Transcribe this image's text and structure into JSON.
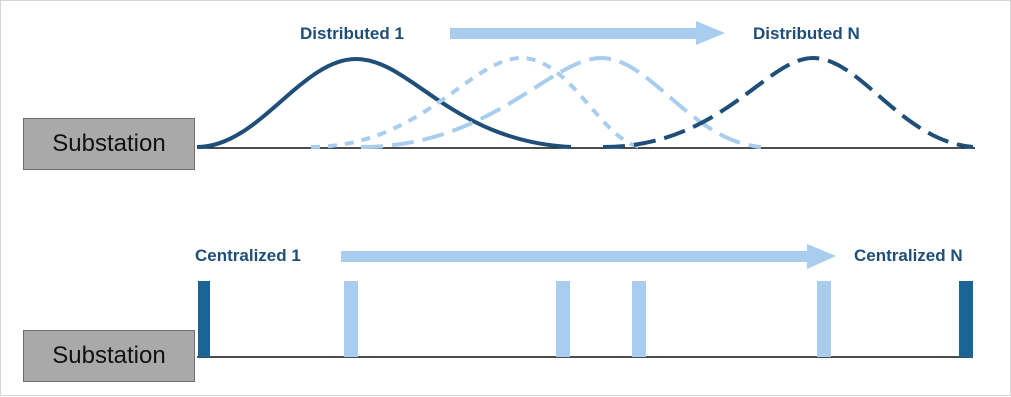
{
  "distributed": {
    "start_label": "Distributed 1",
    "end_label": "Distributed N",
    "substation_label": "Substation"
  },
  "centralized": {
    "start_label": "Centralized 1",
    "end_label": "Centralized N",
    "substation_label": "Substation"
  },
  "colors": {
    "dark": "#1f4e79",
    "light": "#a8cdee",
    "substation": "#a9a9a9",
    "line": "#111111",
    "bar_dark": "#1a6496"
  }
}
